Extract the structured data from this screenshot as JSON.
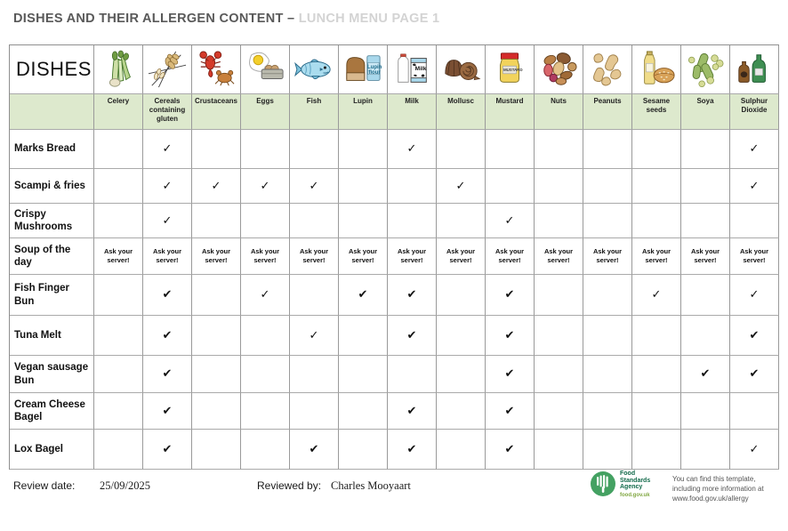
{
  "title": {
    "main": "DISHES AND THEIR ALLERGEN CONTENT –",
    "highlight": "LUNCH MENU PAGE 1"
  },
  "table": {
    "dishes_header": "DISHES",
    "ask_text": "Ask your server!",
    "allergens": [
      {
        "label": "Celery",
        "icon": "celery-icon"
      },
      {
        "label": "Cereals containing gluten",
        "icon": "wheat-icon"
      },
      {
        "label": "Crustaceans",
        "icon": "crustaceans-icon"
      },
      {
        "label": "Eggs",
        "icon": "eggs-icon"
      },
      {
        "label": "Fish",
        "icon": "fish-icon"
      },
      {
        "label": "Lupin",
        "icon": "lupin-icon"
      },
      {
        "label": "Milk",
        "icon": "milk-icon"
      },
      {
        "label": "Mollusc",
        "icon": "mollusc-icon"
      },
      {
        "label": "Mustard",
        "icon": "mustard-icon"
      },
      {
        "label": "Nuts",
        "icon": "nuts-icon"
      },
      {
        "label": "Peanuts",
        "icon": "peanuts-icon"
      },
      {
        "label": "Sesame seeds",
        "icon": "sesame-icon"
      },
      {
        "label": "Soya",
        "icon": "soya-icon"
      },
      {
        "label": "Sulphur Dioxide",
        "icon": "sulphur-dioxide-icon"
      }
    ],
    "icon_text": {
      "lupin_1": "Lupin",
      "lupin_2": "flour",
      "milk": "Milk",
      "mustard": "MUSTARD"
    },
    "rows": [
      {
        "dish": "Marks Bread",
        "cells": [
          "",
          "✓",
          "",
          "",
          "",
          "",
          "✓",
          "",
          "",
          "",
          "",
          "",
          "",
          "✓"
        ]
      },
      {
        "dish": "Scampi & fries",
        "cells": [
          "",
          "✓",
          "✓",
          "✓",
          "✓",
          "",
          "",
          "✓",
          "",
          "",
          "",
          "",
          "",
          "✓"
        ]
      },
      {
        "dish": "Crispy Mushrooms",
        "cells": [
          "",
          "✓",
          "",
          "",
          "",
          "",
          "",
          "",
          "✓",
          "",
          "",
          "",
          "",
          ""
        ]
      },
      {
        "dish": "Soup of the day",
        "cells": [
          "ask",
          "ask",
          "ask",
          "ask",
          "ask",
          "ask",
          "ask",
          "ask",
          "ask",
          "ask",
          "ask",
          "ask",
          "ask",
          "ask"
        ]
      },
      {
        "dish": "Fish Finger Bun",
        "cells": [
          "",
          "✔",
          "",
          "✓",
          "",
          "✔",
          "✔",
          "",
          "✔",
          "",
          "",
          "✓",
          "",
          "✓"
        ]
      },
      {
        "dish": "Tuna Melt",
        "cells": [
          "",
          "✔",
          "",
          "",
          "✓",
          "",
          "✔",
          "",
          "✔",
          "",
          "",
          "",
          "",
          "✔"
        ]
      },
      {
        "dish": "Vegan sausage Bun",
        "cells": [
          "",
          "✔",
          "",
          "",
          "",
          "",
          "",
          "",
          "✔",
          "",
          "",
          "",
          "✔",
          "✔"
        ]
      },
      {
        "dish": "Cream Cheese Bagel",
        "cells": [
          "",
          "✔",
          "",
          "",
          "",
          "",
          "✔",
          "",
          "✔",
          "",
          "",
          "",
          "",
          ""
        ]
      },
      {
        "dish": "Lox Bagel",
        "cells": [
          "",
          "✔",
          "",
          "",
          "✔",
          "",
          "✔",
          "",
          "✔",
          "",
          "",
          "",
          "",
          "✓"
        ]
      }
    ]
  },
  "footer": {
    "review_date_label": "Review date:",
    "review_date_value": "25/09/2025",
    "reviewed_by_label": "Reviewed by:",
    "reviewed_by_value": "Charles Mooyaart",
    "fsa": {
      "line1": "Food",
      "line2": "Standards",
      "line3": "Agency",
      "url": "food.gov.uk"
    },
    "note_lines": [
      "You can find this template,",
      "including more information at",
      "www.food.gov.uk/allergy"
    ]
  },
  "colors": {
    "title_text": "#595959",
    "title_highlight": "#d3d3d3",
    "header_row_green": "#dde9cd",
    "grid_border": "#8f8f8f",
    "check_black": "#111111",
    "fsa_green_dark": "#11694a",
    "fsa_green_light": "#7fa63f",
    "fsa_circle_green": "#44a162",
    "note_text_gray": "#555555"
  }
}
